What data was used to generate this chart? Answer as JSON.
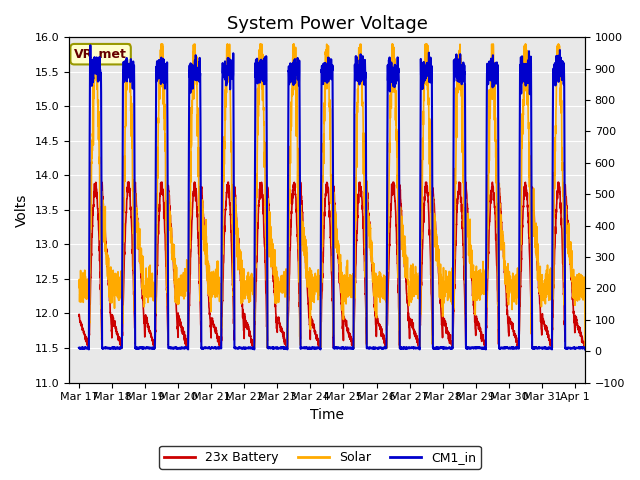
{
  "title": "System Power Voltage",
  "xlabel": "Time",
  "ylabel": "Volts",
  "ylim_left": [
    11.0,
    16.0
  ],
  "ylim_right": [
    -100,
    1000
  ],
  "yticks_left": [
    11.0,
    11.5,
    12.0,
    12.5,
    13.0,
    13.5,
    14.0,
    14.5,
    15.0,
    15.5,
    16.0
  ],
  "yticks_right": [
    -100,
    0,
    100,
    200,
    300,
    400,
    500,
    600,
    700,
    800,
    900,
    1000
  ],
  "xtick_labels": [
    "Mar 17",
    "Mar 18",
    "Mar 19",
    "Mar 20",
    "Mar 21",
    "Mar 22",
    "Mar 23",
    "Mar 24",
    "Mar 25",
    "Mar 26",
    "Mar 27",
    "Mar 28",
    "Mar 29",
    "Mar 30",
    "Mar 31",
    "Apr 1"
  ],
  "legend_box_label": "VR_met",
  "colors": {
    "battery": "#cc0000",
    "solar": "#ffaa00",
    "cm1": "#0000cc"
  },
  "legend_labels": [
    "23x Battery",
    "Solar",
    "CM1_in"
  ],
  "bg_color": "#e8e8e8",
  "fig_bg": "#ffffff",
  "grid_color": "#ffffff",
  "title_fontsize": 13,
  "label_fontsize": 10,
  "tick_fontsize": 8,
  "linewidth_battery": 1.2,
  "linewidth_solar": 1.2,
  "linewidth_cm1": 1.5,
  "n_days": 16,
  "points_per_day": 200
}
